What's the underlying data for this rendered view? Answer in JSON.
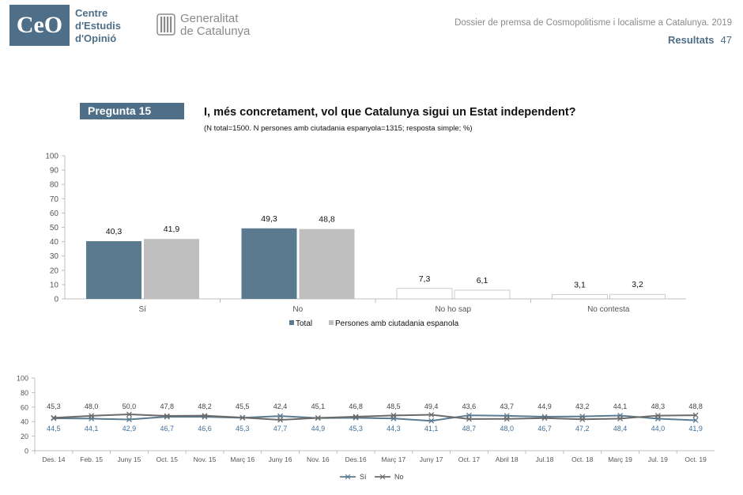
{
  "header": {
    "ceo_logo_text": "CeO",
    "ceo_name_lines": [
      "Centre",
      "d'Estudis",
      "d'Opinió"
    ],
    "gen_name_lines": [
      "Generalitat",
      "de Catalunya"
    ],
    "dossier_title": "Dossier de premsa de Cosmopolitisme i localisme a Catalunya. 2019",
    "section": "Resultats",
    "page_number": "47"
  },
  "question": {
    "label": "Pregunta 15",
    "title": "I, més concretament, vol que Catalunya sigui un Estat independent?",
    "subtitle": "(N total=1500. N persones amb ciutadania espanyola=1315; resposta simple; %)"
  },
  "chart_data": [
    {
      "type": "bar",
      "categories": [
        "Sí",
        "No",
        "No ho sap",
        "No contesta"
      ],
      "series": [
        {
          "name": "Total",
          "values": [
            40.3,
            49.3,
            7.3,
            3.1
          ],
          "color": "#5a7a8f"
        },
        {
          "name": "Persones amb ciutadania espanola",
          "values": [
            41.9,
            48.8,
            6.1,
            3.2
          ],
          "color": "#bfbfbf"
        }
      ],
      "data_labels": [
        [
          "40,3",
          "49,3",
          "7,3",
          "3,1"
        ],
        [
          "41,9",
          "48,8",
          "6,1",
          "3,2"
        ]
      ],
      "yticks": [
        0,
        10,
        20,
        30,
        40,
        50,
        60,
        70,
        80,
        90,
        100
      ],
      "ylim": [
        0,
        100
      ],
      "legend": "bottom",
      "grid": false,
      "title": "",
      "xlabel": "",
      "ylabel": ""
    },
    {
      "type": "line",
      "x": [
        "Des. 14",
        "Feb. 15",
        "Juny 15",
        "Oct. 15",
        "Nov. 15",
        "Març 16",
        "Juny 16",
        "Nov. 16",
        "Des.16",
        "Març 17",
        "Juny 17",
        "Oct. 17",
        "Abril 18",
        "Jul.18",
        "Oct. 18",
        "Març 19",
        "Jul. 19",
        "Oct. 19"
      ],
      "series": [
        {
          "name": "Sí",
          "values": [
            44.5,
            44.1,
            42.9,
            46.7,
            46.6,
            45.3,
            47.7,
            44.9,
            45.3,
            44.3,
            41.1,
            48.7,
            48.0,
            46.7,
            47.2,
            48.4,
            44.0,
            41.9
          ],
          "labels": [
            "44,5",
            "44,1",
            "42,9",
            "46,7",
            "46,6",
            "45,3",
            "47,7",
            "44,9",
            "45,3",
            "44,3",
            "41,1",
            "48,7",
            "48,0",
            "46,7",
            "47,2",
            "48,4",
            "44,0",
            "41,9"
          ],
          "color": "#5a7a8f"
        },
        {
          "name": "No",
          "values": [
            45.3,
            48.0,
            50.0,
            47.8,
            48.2,
            45.5,
            42.4,
            45.1,
            46.8,
            48.5,
            49.4,
            43.6,
            43.7,
            44.9,
            43.2,
            44.1,
            48.3,
            48.8
          ],
          "labels": [
            "45,3",
            "48,0",
            "50,0",
            "47,8",
            "48,2",
            "45,5",
            "42,4",
            "45,1",
            "46,8",
            "48,5",
            "49,4",
            "43,6",
            "43,7",
            "44,9",
            "43,2",
            "44,1",
            "48,3",
            "48,8"
          ],
          "color": "#6b6b6b"
        }
      ],
      "yticks": [
        0,
        20,
        40,
        60,
        80,
        100
      ],
      "ylim": [
        0,
        100
      ],
      "legend": "bottom",
      "grid": false,
      "title": "",
      "xlabel": "",
      "ylabel": ""
    }
  ]
}
